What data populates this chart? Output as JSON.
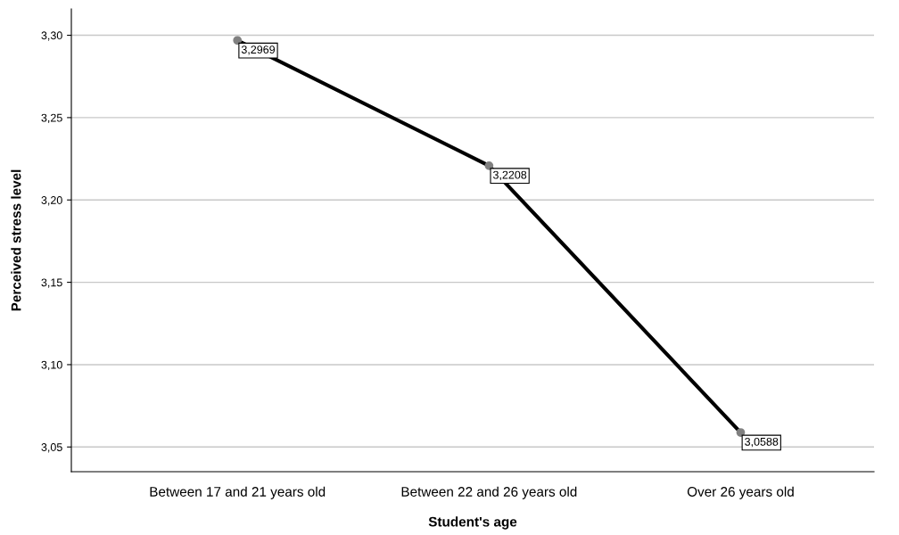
{
  "chart_data": {
    "type": "line",
    "xlabel": "Student's age",
    "ylabel": "Perceived stress level",
    "categories": [
      "Between 17 and 21 years old",
      "Between 22 and 26 years old",
      "Over 26 years old"
    ],
    "series": [
      {
        "color": "#000000",
        "values": [
          3.2969,
          3.2208,
          3.0588
        ],
        "value_labels": [
          "3,2969",
          "3,2208",
          "3,0588"
        ]
      }
    ],
    "ylim": [
      3.035,
      3.316
    ],
    "yticks": [
      {
        "value": 3.05,
        "label": "3,05"
      },
      {
        "value": 3.1,
        "label": "3,10"
      },
      {
        "value": 3.15,
        "label": "3,15"
      },
      {
        "value": 3.2,
        "label": "3,20"
      },
      {
        "value": 3.25,
        "label": "3,25"
      },
      {
        "value": 3.3,
        "label": "3,30"
      }
    ],
    "grid": "y",
    "marker": "circle",
    "line_style": "solid"
  }
}
